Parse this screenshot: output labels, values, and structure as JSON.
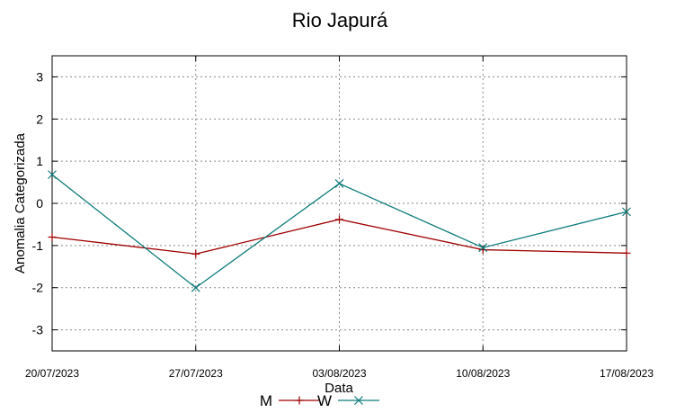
{
  "chart_data": {
    "type": "line",
    "title": "Rio Japurá",
    "xlabel": "Data",
    "ylabel": "Anomalia Categorizada",
    "categories": [
      "20/07/2023",
      "27/07/2023",
      "03/08/2023",
      "10/08/2023",
      "17/08/2023"
    ],
    "yticks": [
      3,
      2,
      1,
      0,
      -1,
      -2,
      -3
    ],
    "ylim": [
      -3.5,
      3.5
    ],
    "grid": true,
    "legend": "bottom-center",
    "series": [
      {
        "name": "M",
        "color": "#a00000",
        "marker": "plus",
        "values": [
          -0.8,
          -1.2,
          -0.38,
          -1.1,
          -1.18
        ]
      },
      {
        "name": "W",
        "color": "#0e7a7a",
        "marker": "cross",
        "values": [
          0.68,
          -2.0,
          0.47,
          -1.05,
          -0.2
        ]
      }
    ]
  }
}
